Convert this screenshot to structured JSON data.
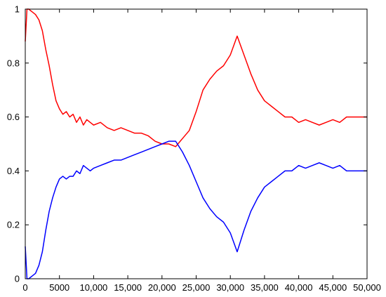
{
  "chart_data": {
    "type": "line",
    "title": "",
    "xlabel": "",
    "ylabel": "",
    "xlim": [
      0,
      50000
    ],
    "ylim": [
      0,
      1
    ],
    "grid": false,
    "x_ticks": [
      0,
      5000,
      10000,
      15000,
      20000,
      25000,
      30000,
      35000,
      40000,
      45000,
      50000
    ],
    "x_tick_labels": [
      "0",
      "5000",
      "10,000",
      "15,000",
      "20,000",
      "25,000",
      "30,000",
      "35,000",
      "40,000",
      "45,000",
      "50,000"
    ],
    "y_ticks": [
      0,
      0.2,
      0.4,
      0.6,
      0.8,
      1
    ],
    "y_tick_labels": [
      "0",
      "0.2",
      "0.4",
      "0.6",
      "0.8",
      "1"
    ],
    "x": [
      0,
      250,
      500,
      1000,
      1500,
      2000,
      2500,
      3000,
      3500,
      4000,
      4500,
      5000,
      5500,
      6000,
      6500,
      7000,
      7500,
      8000,
      8500,
      9000,
      9500,
      10000,
      11000,
      12000,
      13000,
      14000,
      15000,
      16000,
      17000,
      18000,
      19000,
      20000,
      21000,
      22000,
      23000,
      24000,
      25000,
      26000,
      27000,
      28000,
      29000,
      30000,
      31000,
      32000,
      33000,
      34000,
      35000,
      36000,
      37000,
      38000,
      39000,
      40000,
      41000,
      42000,
      43000,
      44000,
      45000,
      46000,
      47000,
      48000,
      49000,
      50000
    ],
    "series": [
      {
        "color": "#ff0000",
        "values": [
          0.88,
          1.0,
          1.0,
          0.99,
          0.98,
          0.96,
          0.92,
          0.85,
          0.79,
          0.72,
          0.66,
          0.63,
          0.61,
          0.62,
          0.6,
          0.61,
          0.58,
          0.6,
          0.57,
          0.59,
          0.58,
          0.57,
          0.58,
          0.56,
          0.55,
          0.56,
          0.55,
          0.54,
          0.54,
          0.53,
          0.51,
          0.5,
          0.5,
          0.49,
          0.52,
          0.55,
          0.62,
          0.7,
          0.74,
          0.77,
          0.79,
          0.83,
          0.9,
          0.83,
          0.76,
          0.7,
          0.66,
          0.64,
          0.62,
          0.6,
          0.6,
          0.58,
          0.59,
          0.58,
          0.57,
          0.58,
          0.59,
          0.58,
          0.6,
          0.6,
          0.6,
          0.6
        ]
      },
      {
        "color": "#0000ff",
        "values": [
          0.12,
          0.0,
          0.0,
          0.01,
          0.02,
          0.05,
          0.1,
          0.18,
          0.25,
          0.3,
          0.34,
          0.37,
          0.38,
          0.37,
          0.38,
          0.38,
          0.4,
          0.39,
          0.42,
          0.41,
          0.4,
          0.41,
          0.42,
          0.43,
          0.44,
          0.44,
          0.45,
          0.46,
          0.47,
          0.48,
          0.49,
          0.5,
          0.51,
          0.51,
          0.47,
          0.42,
          0.36,
          0.3,
          0.26,
          0.23,
          0.21,
          0.17,
          0.1,
          0.18,
          0.25,
          0.3,
          0.34,
          0.36,
          0.38,
          0.4,
          0.4,
          0.42,
          0.41,
          0.42,
          0.43,
          0.42,
          0.41,
          0.42,
          0.4,
          0.4,
          0.4,
          0.4
        ]
      }
    ]
  }
}
